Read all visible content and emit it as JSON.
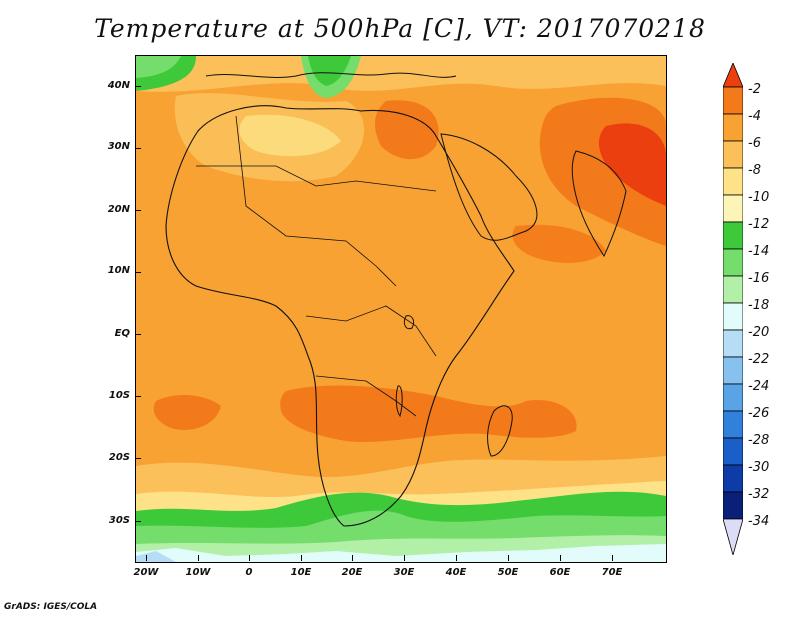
{
  "title": "Temperature at 500hPa [C], VT: 2017070218",
  "credit": "GrADS: IGES/COLA",
  "lat_labels": [
    "40N",
    "30N",
    "20N",
    "10N",
    "EQ",
    "10S",
    "20S",
    "30S"
  ],
  "lon_labels": [
    "20W",
    "10W",
    "0",
    "10E",
    "20E",
    "30E",
    "40E",
    "50E",
    "60E",
    "70E"
  ],
  "colorbar": {
    "labels": [
      "-2",
      "-4",
      "-6",
      "-8",
      "-10",
      "-12",
      "-14",
      "-16",
      "-18",
      "-20",
      "-22",
      "-24",
      "-26",
      "-28",
      "-30",
      "-32",
      "-34"
    ],
    "colors": [
      "#ec3f10",
      "#f37a1a",
      "#f8a233",
      "#fbc05a",
      "#fde287",
      "#fdf4b8",
      "#3ec93a",
      "#74dd6c",
      "#b2f0a8",
      "#e2fbfb",
      "#b5ddf6",
      "#86c1ef",
      "#5aa3e6",
      "#3080dc",
      "#1a5ec8",
      "#0d3ca8",
      "#0a1f78"
    ]
  }
}
